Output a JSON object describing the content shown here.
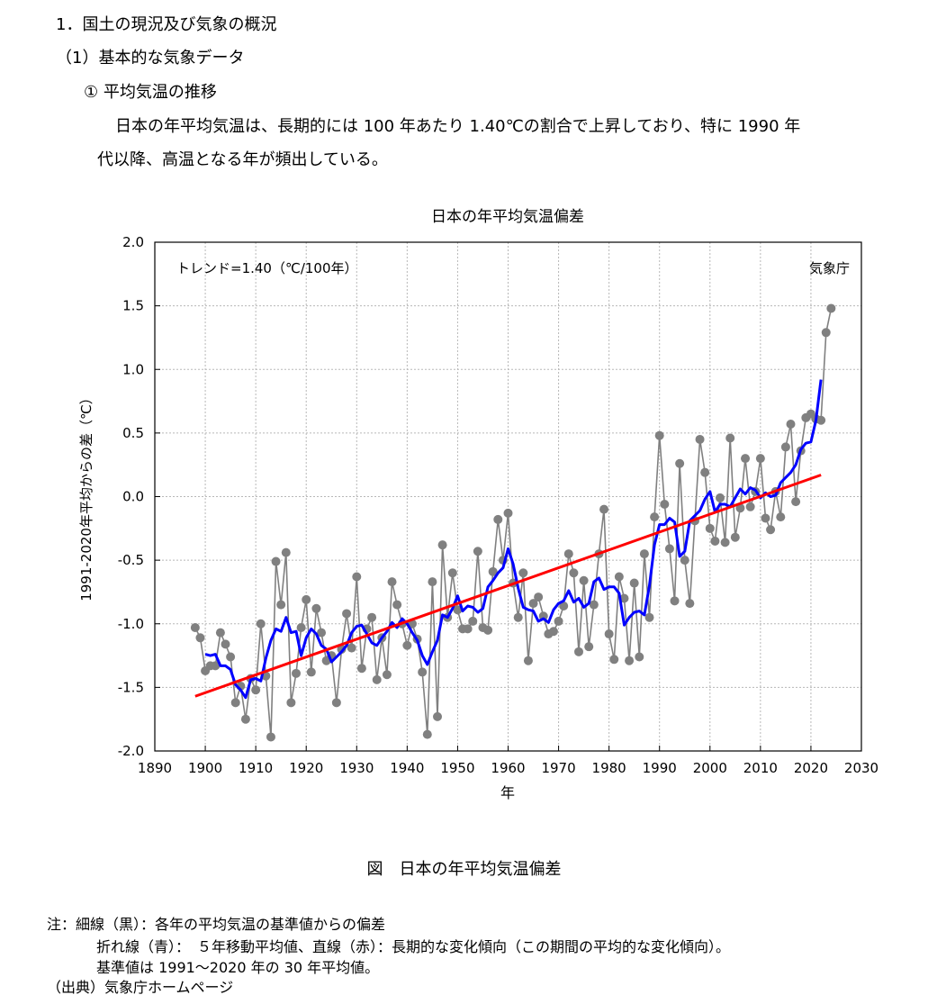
{
  "doc": {
    "section_heading": "1．国土の現況及び気象の概況",
    "subsection_heading": "（1）基本的な気象データ",
    "item_heading": "① 平均気温の推移",
    "paragraph_line1": "日本の年平均気温は、長期的には 100 年あたり 1.40℃の割合で上昇しており、特に 1990 年",
    "paragraph_line2": "代以降、高温となる年が頻出している。",
    "figure_caption": "図　日本の年平均気温偏差",
    "note_line1": "注：細線（黒）：各年の平均気温の基準値からの偏差",
    "note_line2": "折れ線（青）：　５年移動平均値、直線（赤）：長期的な変化傾向（この期間の平均的な変化傾向）。",
    "note_line3": "基準値は 1991～2020 年の 30 年平均値。",
    "source_line": "（出典）気象庁ホームページ"
  },
  "chart_data": {
    "type": "line",
    "title": "日本の年平均気温偏差",
    "xlabel": "年",
    "ylabel": "1991-2020年平均からの差（℃）",
    "trend_label": "トレンド=1.40（℃/100年）",
    "source_label": "気象庁",
    "xlim": [
      1890,
      2030
    ],
    "ylim": [
      -2.0,
      2.0
    ],
    "x_ticks": [
      1890,
      1900,
      1910,
      1920,
      1930,
      1940,
      1950,
      1960,
      1970,
      1980,
      1990,
      2000,
      2010,
      2020,
      2030
    ],
    "y_ticks": [
      -2.0,
      -1.5,
      -1.0,
      -0.5,
      0.0,
      0.5,
      1.0,
      1.5,
      2.0
    ],
    "y_tick_labels": [
      "-2.0",
      "-1.5",
      "-1.0",
      "-0.5",
      "0.0",
      "0.5",
      "1.0",
      "1.5",
      "2.0"
    ],
    "grid": true,
    "colors": {
      "annual": "#808080",
      "moving_average": "#0000ff",
      "trend": "#ff0000"
    },
    "series": [
      {
        "role": "annual",
        "x": [
          1898,
          1899,
          1900,
          1901,
          1902,
          1903,
          1904,
          1905,
          1906,
          1907,
          1908,
          1909,
          1910,
          1911,
          1912,
          1913,
          1914,
          1915,
          1916,
          1917,
          1918,
          1919,
          1920,
          1921,
          1922,
          1923,
          1924,
          1925,
          1926,
          1927,
          1928,
          1929,
          1930,
          1931,
          1932,
          1933,
          1934,
          1935,
          1936,
          1937,
          1938,
          1939,
          1940,
          1941,
          1942,
          1943,
          1944,
          1945,
          1946,
          1947,
          1948,
          1949,
          1950,
          1951,
          1952,
          1953,
          1954,
          1955,
          1956,
          1957,
          1958,
          1959,
          1960,
          1961,
          1962,
          1963,
          1964,
          1965,
          1966,
          1967,
          1968,
          1969,
          1970,
          1971,
          1972,
          1973,
          1974,
          1975,
          1976,
          1977,
          1978,
          1979,
          1980,
          1981,
          1982,
          1983,
          1984,
          1985,
          1986,
          1987,
          1988,
          1989,
          1990,
          1991,
          1992,
          1993,
          1994,
          1995,
          1996,
          1997,
          1998,
          1999,
          2000,
          2001,
          2002,
          2003,
          2004,
          2005,
          2006,
          2007,
          2008,
          2009,
          2010,
          2011,
          2012,
          2013,
          2014,
          2015,
          2016,
          2017,
          2018,
          2019,
          2020,
          2021,
          2022,
          2023,
          2024
        ],
        "y": [
          -1.03,
          -1.11,
          -1.37,
          -1.33,
          -1.33,
          -1.07,
          -1.16,
          -1.26,
          -1.62,
          -1.49,
          -1.75,
          -1.43,
          -1.52,
          -1.0,
          -1.41,
          -1.89,
          -0.51,
          -0.85,
          -0.44,
          -1.62,
          -1.39,
          -1.03,
          -0.81,
          -1.38,
          -0.88,
          -1.07,
          -1.29,
          -1.25,
          -1.62,
          -1.2,
          -0.92,
          -1.19,
          -0.63,
          -1.35,
          -1.04,
          -0.95,
          -1.44,
          -1.11,
          -1.4,
          -0.67,
          -0.85,
          -1.0,
          -1.17,
          -1.0,
          -1.12,
          -1.38,
          -1.87,
          -0.67,
          -1.73,
          -0.38,
          -0.95,
          -0.6,
          -0.89,
          -1.04,
          -1.04,
          -0.98,
          -0.43,
          -1.03,
          -1.05,
          -0.59,
          -0.18,
          -0.5,
          -0.13,
          -0.68,
          -0.95,
          -0.6,
          -1.29,
          -0.84,
          -0.79,
          -0.94,
          -1.08,
          -1.06,
          -0.98,
          -0.86,
          -0.45,
          -0.6,
          -1.22,
          -0.66,
          -1.18,
          -0.85,
          -0.45,
          -0.1,
          -1.08,
          -1.28,
          -0.63,
          -0.8,
          -1.29,
          -0.68,
          -1.26,
          -0.45,
          -0.95,
          -0.16,
          0.48,
          -0.06,
          -0.41,
          -0.82,
          0.26,
          -0.5,
          -0.84,
          -0.19,
          0.45,
          0.19,
          -0.25,
          -0.35,
          -0.01,
          -0.36,
          0.46,
          -0.32,
          -0.09,
          0.3,
          -0.08,
          0.04,
          0.3,
          -0.17,
          -0.26,
          0.04,
          -0.16,
          0.39,
          0.57,
          -0.04,
          0.36,
          0.62,
          0.65,
          0.61,
          0.6,
          1.29,
          1.48
        ]
      },
      {
        "role": "moving_average",
        "x": [
          1900,
          1901,
          1902,
          1903,
          1904,
          1905,
          1906,
          1907,
          1908,
          1909,
          1910,
          1911,
          1912,
          1913,
          1914,
          1915,
          1916,
          1917,
          1918,
          1919,
          1920,
          1921,
          1922,
          1923,
          1924,
          1925,
          1926,
          1927,
          1928,
          1929,
          1930,
          1931,
          1932,
          1933,
          1934,
          1935,
          1936,
          1937,
          1938,
          1939,
          1940,
          1941,
          1942,
          1943,
          1944,
          1945,
          1946,
          1947,
          1948,
          1949,
          1950,
          1951,
          1952,
          1953,
          1954,
          1955,
          1956,
          1957,
          1958,
          1959,
          1960,
          1961,
          1962,
          1963,
          1964,
          1965,
          1966,
          1967,
          1968,
          1969,
          1970,
          1971,
          1972,
          1973,
          1974,
          1975,
          1976,
          1977,
          1978,
          1979,
          1980,
          1981,
          1982,
          1983,
          1984,
          1985,
          1986,
          1987,
          1988,
          1989,
          1990,
          1991,
          1992,
          1993,
          1994,
          1995,
          1996,
          1997,
          1998,
          1999,
          2000,
          2001,
          2002,
          2003,
          2004,
          2005,
          2006,
          2007,
          2008,
          2009,
          2010,
          2011,
          2012,
          2013,
          2014,
          2015,
          2016,
          2017,
          2018,
          2019,
          2020,
          2021,
          2022
        ],
        "y": [
          -1.24,
          -1.25,
          -1.24,
          -1.33,
          -1.33,
          -1.36,
          -1.48,
          -1.52,
          -1.58,
          -1.44,
          -1.43,
          -1.45,
          -1.27,
          -1.13,
          -1.04,
          -1.06,
          -0.95,
          -1.07,
          -1.06,
          -1.25,
          -1.11,
          -1.04,
          -1.08,
          -1.17,
          -1.2,
          -1.3,
          -1.26,
          -1.22,
          -1.17,
          -1.07,
          -1.02,
          -1.01,
          -1.08,
          -1.15,
          -1.17,
          -1.11,
          -1.06,
          -0.99,
          -1.03,
          -0.96,
          -1.0,
          -1.07,
          -1.13,
          -1.25,
          -1.32,
          -1.22,
          -1.13,
          -0.93,
          -0.95,
          -0.88,
          -0.78,
          -0.9,
          -0.86,
          -0.87,
          -0.91,
          -0.88,
          -0.71,
          -0.66,
          -0.6,
          -0.56,
          -0.41,
          -0.53,
          -0.72,
          -0.87,
          -0.89,
          -0.9,
          -0.98,
          -0.96,
          -0.99,
          -0.89,
          -0.84,
          -0.82,
          -0.74,
          -0.83,
          -0.8,
          -0.87,
          -0.84,
          -0.67,
          -0.64,
          -0.73,
          -0.71,
          -0.71,
          -0.76,
          -1.01,
          -0.95,
          -0.91,
          -0.9,
          -0.93,
          -0.7,
          -0.38,
          -0.22,
          -0.22,
          -0.17,
          -0.2,
          -0.47,
          -0.43,
          -0.19,
          -0.15,
          -0.11,
          -0.02,
          0.04,
          -0.12,
          -0.06,
          -0.06,
          -0.08,
          -0.01,
          0.06,
          0.02,
          0.07,
          0.05,
          -0.01,
          0.03,
          0.0,
          0.01,
          0.11,
          0.15,
          0.19,
          0.25,
          0.37,
          0.42,
          0.43,
          0.6,
          0.92
        ]
      },
      {
        "role": "trend",
        "x": [
          1898,
          2022
        ],
        "y": [
          -1.57,
          0.17
        ]
      }
    ]
  }
}
